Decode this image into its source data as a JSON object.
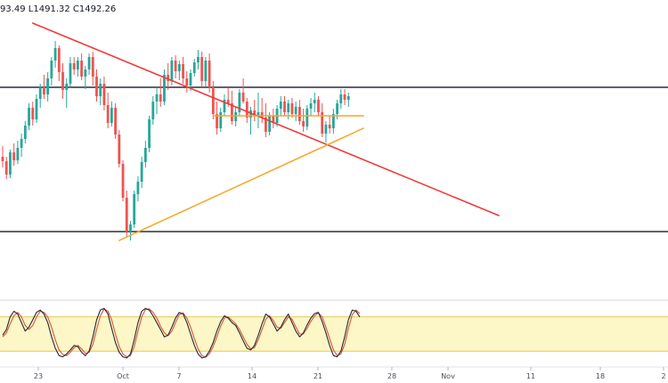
{
  "ohlc_readout": "93.49  L1491.32  C1492.26",
  "colors": {
    "up": "#26a69a",
    "down": "#ef5350",
    "trendline": "#ef3b3b",
    "triangle": "#f5a623",
    "level": "#2a2e39",
    "osc_band": "#fdf7c8",
    "osc_band_border": "#e3c94e",
    "stoch_k": "#1f2a36",
    "stoch_d": "#e0513a"
  },
  "chart_data": {
    "type": "candlestick",
    "x_ticks": [
      "23",
      "Oct",
      "7",
      "14",
      "21",
      "28",
      "Nov",
      "11",
      "18",
      "2"
    ],
    "candles": [
      [
        150,
        162,
        138,
        145
      ],
      [
        145,
        150,
        125,
        130
      ],
      [
        130,
        158,
        126,
        155
      ],
      [
        155,
        165,
        140,
        146
      ],
      [
        146,
        168,
        142,
        160
      ],
      [
        160,
        176,
        150,
        170
      ],
      [
        170,
        190,
        165,
        185
      ],
      [
        185,
        210,
        180,
        205
      ],
      [
        205,
        212,
        185,
        192
      ],
      [
        192,
        220,
        188,
        215
      ],
      [
        215,
        232,
        205,
        228
      ],
      [
        228,
        242,
        215,
        220
      ],
      [
        220,
        245,
        212,
        238
      ],
      [
        238,
        262,
        230,
        258
      ],
      [
        258,
        280,
        250,
        272
      ],
      [
        272,
        275,
        235,
        245
      ],
      [
        245,
        255,
        215,
        225
      ],
      [
        225,
        238,
        205,
        232
      ],
      [
        232,
        262,
        228,
        255
      ],
      [
        255,
        262,
        242,
        248
      ],
      [
        248,
        262,
        240,
        258
      ],
      [
        258,
        266,
        236,
        240
      ],
      [
        240,
        252,
        226,
        248
      ],
      [
        248,
        266,
        242,
        262
      ],
      [
        262,
        268,
        230,
        240
      ],
      [
        240,
        248,
        212,
        218
      ],
      [
        218,
        238,
        208,
        232
      ],
      [
        232,
        240,
        202,
        208
      ],
      [
        208,
        222,
        182,
        188
      ],
      [
        188,
        212,
        184,
        205
      ],
      [
        205,
        210,
        170,
        175
      ],
      [
        175,
        180,
        138,
        142
      ],
      [
        142,
        146,
        100,
        104
      ],
      [
        104,
        112,
        60,
        66
      ],
      [
        66,
        78,
        56,
        74
      ],
      [
        74,
        112,
        70,
        108
      ],
      [
        108,
        128,
        100,
        122
      ],
      [
        122,
        150,
        115,
        144
      ],
      [
        144,
        168,
        138,
        160
      ],
      [
        160,
        196,
        155,
        192
      ],
      [
        192,
        218,
        186,
        212
      ],
      [
        212,
        228,
        198,
        220
      ],
      [
        220,
        238,
        206,
        212
      ],
      [
        212,
        248,
        208,
        242
      ],
      [
        242,
        255,
        225,
        235
      ],
      [
        235,
        262,
        230,
        258
      ],
      [
        258,
        264,
        238,
        246
      ],
      [
        246,
        258,
        236,
        254
      ],
      [
        254,
        262,
        232,
        238
      ],
      [
        238,
        246,
        222,
        230
      ],
      [
        230,
        248,
        224,
        244
      ],
      [
        244,
        260,
        240,
        256
      ],
      [
        256,
        270,
        248,
        262
      ],
      [
        262,
        268,
        228,
        235
      ],
      [
        235,
        262,
        228,
        258
      ],
      [
        258,
        266,
        222,
        228
      ],
      [
        228,
        235,
        192,
        198
      ],
      [
        198,
        212,
        175,
        182
      ],
      [
        182,
        205,
        178,
        200
      ],
      [
        200,
        220,
        196,
        214
      ],
      [
        214,
        228,
        206,
        210
      ],
      [
        210,
        224,
        186,
        190
      ],
      [
        190,
        206,
        184,
        200
      ],
      [
        200,
        226,
        196,
        222
      ],
      [
        222,
        238,
        210,
        212
      ],
      [
        212,
        216,
        188,
        194
      ],
      [
        194,
        206,
        175,
        202
      ],
      [
        202,
        214,
        190,
        196
      ],
      [
        196,
        222,
        182,
        200
      ],
      [
        200,
        216,
        188,
        194
      ],
      [
        194,
        210,
        172,
        178
      ],
      [
        178,
        200,
        174,
        196
      ],
      [
        196,
        204,
        182,
        188
      ],
      [
        188,
        208,
        184,
        204
      ],
      [
        204,
        218,
        196,
        212
      ],
      [
        212,
        218,
        196,
        200
      ],
      [
        200,
        214,
        192,
        210
      ],
      [
        210,
        216,
        194,
        198
      ],
      [
        198,
        212,
        190,
        206
      ],
      [
        206,
        214,
        186,
        190
      ],
      [
        190,
        204,
        178,
        184
      ],
      [
        184,
        208,
        180,
        204
      ],
      [
        204,
        216,
        196,
        210
      ],
      [
        210,
        222,
        200,
        214
      ],
      [
        214,
        218,
        196,
        200
      ],
      [
        200,
        210,
        172,
        176
      ],
      [
        176,
        190,
        166,
        186
      ],
      [
        186,
        196,
        176,
        182
      ],
      [
        182,
        204,
        176,
        198
      ],
      [
        198,
        214,
        192,
        210
      ],
      [
        210,
        226,
        204,
        220
      ],
      [
        220,
        226,
        208,
        214
      ],
      [
        214,
        222,
        206,
        218
      ]
    ],
    "levels": [
      228,
      66
    ],
    "trendline": [
      [
        8,
        300
      ],
      [
        132,
        84
      ]
    ],
    "triangle_top": [
      [
        56,
        196
      ],
      [
        96,
        196
      ]
    ],
    "triangle_bottom": [
      [
        31,
        56
      ],
      [
        96,
        182
      ]
    ],
    "oscillator": {
      "band": [
        20,
        80
      ],
      "k": [
        48,
        58,
        80,
        90,
        85,
        70,
        55,
        62,
        75,
        88,
        92,
        85,
        70,
        45,
        25,
        12,
        10,
        15,
        22,
        30,
        28,
        18,
        12,
        20,
        45,
        75,
        92,
        95,
        85,
        60,
        35,
        18,
        10,
        8,
        15,
        40,
        70,
        90,
        95,
        92,
        82,
        70,
        58,
        45,
        48,
        62,
        78,
        88,
        85,
        70,
        50,
        30,
        15,
        8,
        10,
        20,
        35,
        55,
        72,
        82,
        78,
        70,
        65,
        52,
        38,
        25,
        22,
        30,
        48,
        68,
        85,
        80,
        68,
        55,
        62,
        75,
        85,
        70,
        55,
        45,
        52,
        66,
        78,
        86,
        88,
        72,
        52,
        30,
        12,
        10,
        20,
        45,
        75,
        92,
        90,
        80
      ],
      "d": [
        45,
        52,
        68,
        82,
        88,
        80,
        65,
        58,
        65,
        80,
        90,
        88,
        80,
        62,
        40,
        22,
        14,
        12,
        18,
        26,
        30,
        24,
        16,
        18,
        32,
        58,
        82,
        94,
        90,
        75,
        50,
        28,
        15,
        10,
        12,
        28,
        55,
        80,
        93,
        94,
        88,
        78,
        64,
        52,
        47,
        55,
        70,
        84,
        87,
        78,
        62,
        42,
        24,
        12,
        9,
        15,
        28,
        45,
        64,
        78,
        80,
        74,
        68,
        58,
        45,
        32,
        24,
        26,
        40,
        58,
        76,
        82,
        74,
        62,
        60,
        70,
        80,
        76,
        62,
        50,
        50,
        60,
        72,
        82,
        87,
        80,
        62,
        42,
        22,
        12,
        15,
        32,
        60,
        84,
        92,
        86
      ]
    },
    "xlabel": "",
    "ylabel": ""
  }
}
